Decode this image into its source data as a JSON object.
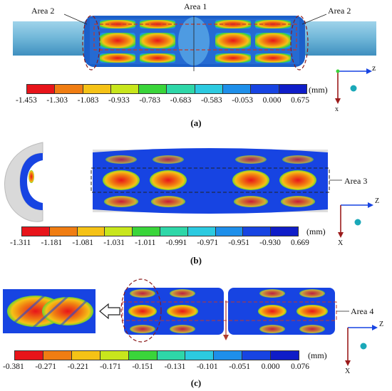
{
  "panel_a": {
    "labels": {
      "area2_left": "Area 2",
      "area1": "Area 1",
      "area2_right": "Area 2"
    },
    "scale": [
      "-1.453",
      "-1.303",
      "-1.083",
      "-0.933",
      "-0.783",
      "-0.683",
      "-0.583",
      "-0.053",
      "0.000",
      "0.675"
    ],
    "unit": "(mm)",
    "caption": "(a)",
    "axis": {
      "z": "z",
      "x": "x"
    }
  },
  "panel_b": {
    "labels": {
      "area3": "Area 3"
    },
    "scale": [
      "-1.311",
      "-1.181",
      "-1.081",
      "-1.031",
      "-1.011",
      "-0.991",
      "-0.971",
      "-0.951",
      "-0.930",
      "0.669"
    ],
    "unit": "(mm)",
    "caption": "(b)",
    "axis": {
      "z": "Z",
      "x": "X"
    }
  },
  "panel_c": {
    "labels": {
      "area4": "Area 4"
    },
    "scale": [
      "-0.381",
      "-0.271",
      "-0.221",
      "-0.171",
      "-0.151",
      "-0.131",
      "-0.101",
      "-0.051",
      "0.000",
      "0.076"
    ],
    "unit": "(mm)",
    "caption": "(c)",
    "axis": {
      "z": "Z",
      "x": "X"
    }
  },
  "colors": [
    "#e8141a",
    "#f07d12",
    "#f5c216",
    "#c8e61c",
    "#3ad53a",
    "#2ed7a8",
    "#2ccae0",
    "#1e8fea",
    "#1744e2",
    "#0f1dc8"
  ]
}
